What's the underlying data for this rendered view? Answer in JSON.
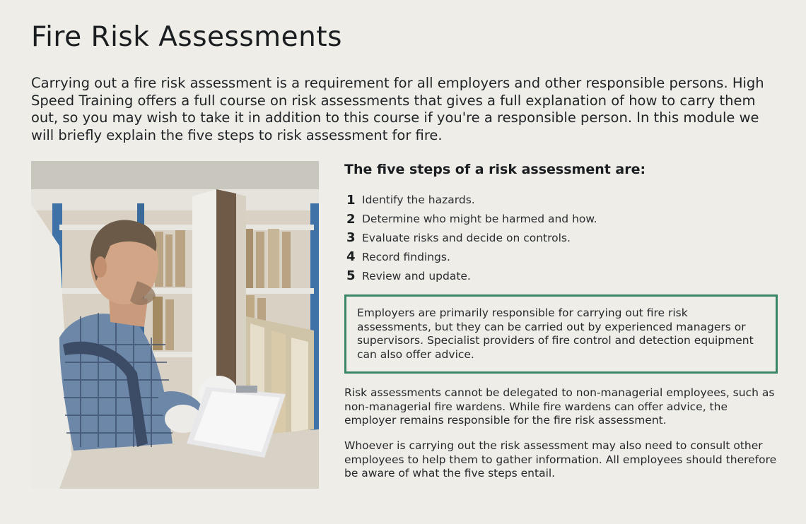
{
  "page": {
    "title": "Fire Risk Assessments",
    "intro": "Carrying out a fire risk assessment is a requirement for all employers and other responsible persons. High Speed Training offers a full course on risk assessments that gives a full explanation of how to carry them out, so you may wish to take it in addition to this course if you're a responsible person. In this module we will briefly explain the five steps to risk assessment for fire."
  },
  "steps": {
    "heading": "The five steps of a risk assessment are:",
    "items": [
      {
        "num": "1",
        "text": "Identify the hazards."
      },
      {
        "num": "2",
        "text": "Determine who might be harmed and how."
      },
      {
        "num": "3",
        "text": "Evaluate risks and decide on controls."
      },
      {
        "num": "4",
        "text": "Record findings."
      },
      {
        "num": "5",
        "text": "Review and update."
      }
    ]
  },
  "callout": {
    "text": "Employers are primarily responsible for carrying out fire risk assessments, but they can be carried out by experienced managers or supervisors. Specialist providers of fire control and detection equipment can also offer advice.",
    "border_color": "#3a8564"
  },
  "paragraphs": [
    "Risk assessments cannot be delegated to non-managerial employees, such as non-managerial fire wardens. While fire wardens can offer advice, the employer remains responsible for the fire risk assessment.",
    "Whoever is carrying out the risk assessment may also need to consult other employees to help them to gather information. All employees should therefore be aware of what the five steps entail."
  ],
  "colors": {
    "background": "#efede7",
    "accent": "#3a8564"
  }
}
